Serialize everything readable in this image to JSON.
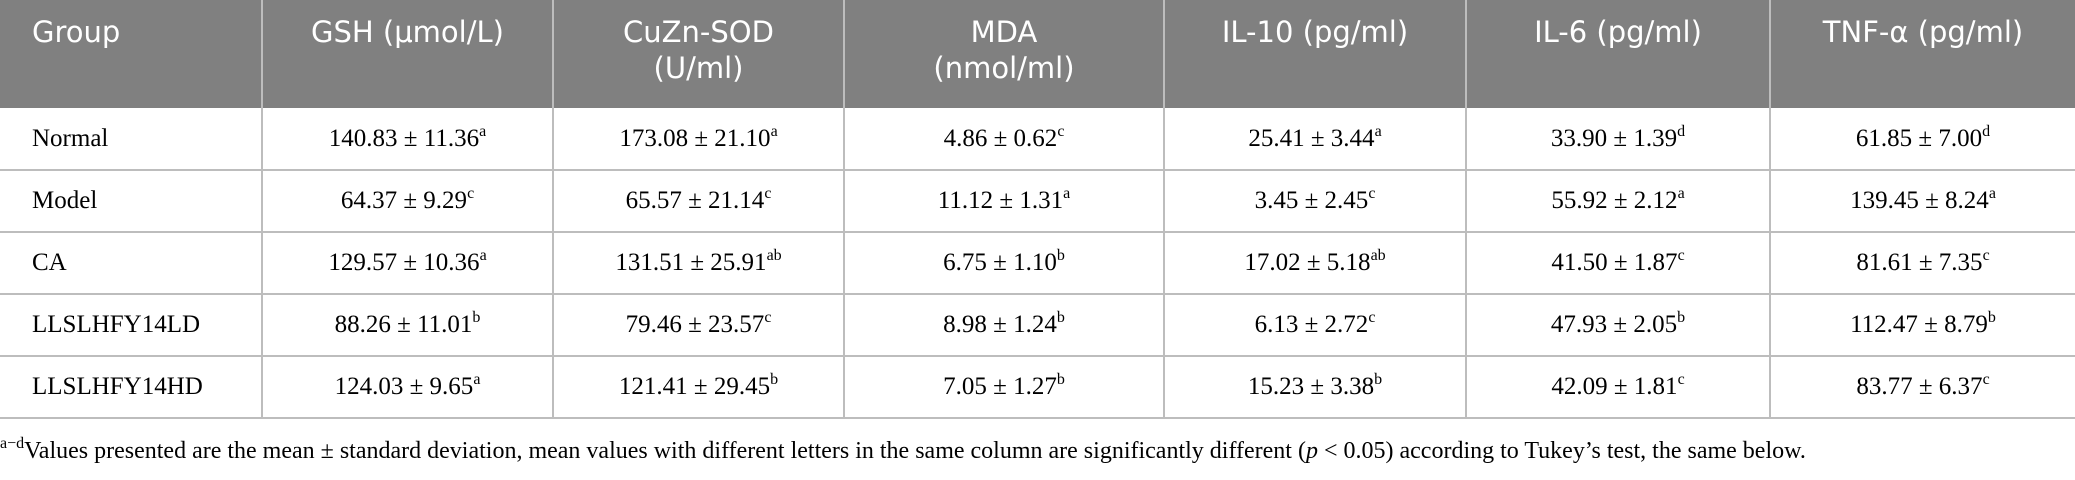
{
  "table": {
    "headers": [
      [
        "Group"
      ],
      [
        "GSH (μmol/L)"
      ],
      [
        "CuZn-SOD",
        "(U/ml)"
      ],
      [
        "MDA",
        "(nmol/ml)"
      ],
      [
        "IL-10 (pg/ml)"
      ],
      [
        "IL-6 (pg/ml)"
      ],
      [
        "TNF-α (pg/ml)"
      ]
    ],
    "rows": [
      [
        "Normal",
        {
          "text": "140.83 ± 11.36",
          "sup": "a"
        },
        {
          "text": "173.08 ± 21.10",
          "sup": "a"
        },
        {
          "text": "4.86 ± 0.62",
          "sup": "c"
        },
        {
          "text": "25.41 ± 3.44",
          "sup": "a"
        },
        {
          "text": "33.90 ± 1.39",
          "sup": "d"
        },
        {
          "text": "61.85 ± 7.00",
          "sup": "d"
        }
      ],
      [
        "Model",
        {
          "text": "64.37 ± 9.29",
          "sup": "c"
        },
        {
          "text": "65.57 ± 21.14",
          "sup": "c"
        },
        {
          "text": "11.12 ± 1.31",
          "sup": "a"
        },
        {
          "text": "3.45 ± 2.45",
          "sup": "c"
        },
        {
          "text": "55.92 ± 2.12",
          "sup": "a"
        },
        {
          "text": "139.45 ± 8.24",
          "sup": "a"
        }
      ],
      [
        "CA",
        {
          "text": "129.57 ± 10.36",
          "sup": "a"
        },
        {
          "text": "131.51 ± 25.91",
          "sup": "ab"
        },
        {
          "text": "6.75 ± 1.10",
          "sup": "b"
        },
        {
          "text": "17.02 ± 5.18",
          "sup": "ab"
        },
        {
          "text": "41.50 ± 1.87",
          "sup": "c"
        },
        {
          "text": "81.61 ± 7.35",
          "sup": "c"
        }
      ],
      [
        "LLSLHFY14LD",
        {
          "text": "88.26 ± 11.01",
          "sup": "b"
        },
        {
          "text": "79.46 ± 23.57",
          "sup": "c"
        },
        {
          "text": "8.98 ± 1.24",
          "sup": "b"
        },
        {
          "text": "6.13 ± 2.72",
          "sup": "c"
        },
        {
          "text": "47.93 ± 2.05",
          "sup": "b"
        },
        {
          "text": "112.47 ± 8.79",
          "sup": "b"
        }
      ],
      [
        "LLSLHFY14HD",
        {
          "text": "124.03 ± 9.65",
          "sup": "a"
        },
        {
          "text": "121.41 ± 29.45",
          "sup": "b"
        },
        {
          "text": "7.05 ± 1.27",
          "sup": "b"
        },
        {
          "text": "15.23 ± 3.38",
          "sup": "b"
        },
        {
          "text": "42.09 ± 1.81",
          "sup": "c"
        },
        {
          "text": "83.77 ± 6.37",
          "sup": "c"
        }
      ]
    ]
  },
  "footnote": {
    "sup": "a−d",
    "text_before": "Values presented are the mean ± standard deviation, mean values with different letters in the same column are significantly different (",
    "italic": "p",
    "text_after": " < 0.05) according to Tukey’s test, the same below."
  }
}
